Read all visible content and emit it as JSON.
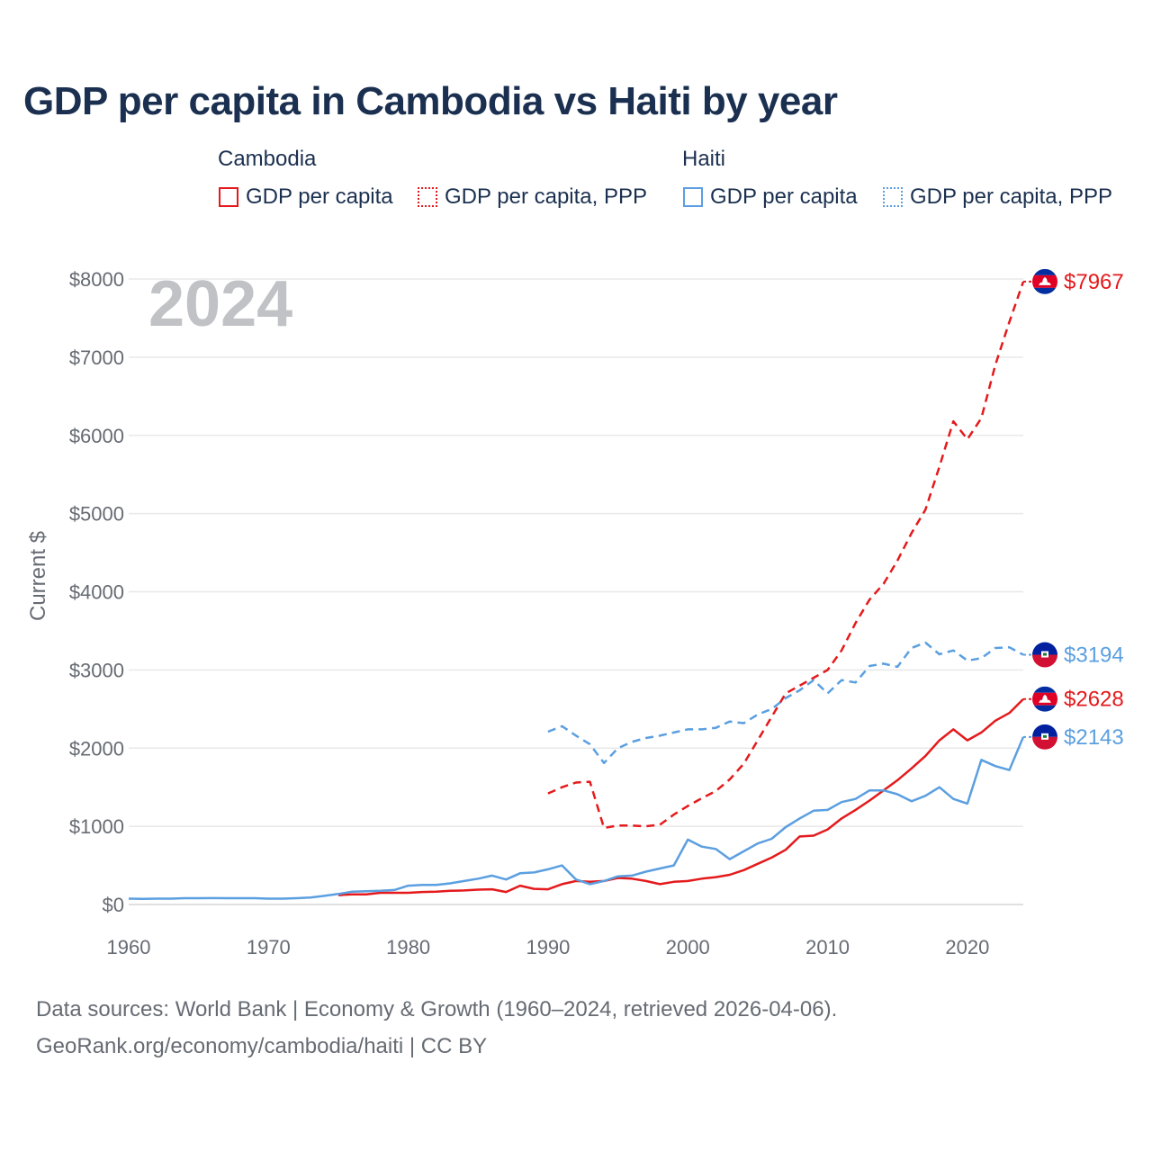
{
  "chart_data": {
    "type": "line",
    "title": "GDP per capita in Cambodia vs Haiti by year",
    "ylabel": "Current $",
    "xlabel": "",
    "year_watermark": "2024",
    "xlim": [
      1960,
      2024
    ],
    "ylim": [
      0,
      8000
    ],
    "x_ticks": [
      1960,
      1970,
      1980,
      1990,
      2000,
      2010,
      2020
    ],
    "x_tick_labels": [
      "1960",
      "1970",
      "1980",
      "1990",
      "2000",
      "2010",
      "2020"
    ],
    "y_ticks": [
      0,
      1000,
      2000,
      3000,
      4000,
      5000,
      6000,
      7000,
      8000
    ],
    "y_tick_labels": [
      "$0",
      "$1000",
      "$2000",
      "$3000",
      "$4000",
      "$5000",
      "$6000",
      "$7000",
      "$8000"
    ],
    "legend": {
      "groups": [
        {
          "country": "Cambodia",
          "items": [
            {
              "label": "GDP per capita",
              "style": "solid",
              "color": "#e41a1c"
            },
            {
              "label": "GDP per capita, PPP",
              "style": "dotted",
              "color": "#e41a1c"
            }
          ]
        },
        {
          "country": "Haiti",
          "items": [
            {
              "label": "GDP per capita",
              "style": "solid",
              "color": "#5b9fe0"
            },
            {
              "label": "GDP per capita, PPP",
              "style": "dotted",
              "color": "#5b9fe0"
            }
          ]
        }
      ]
    },
    "series": [
      {
        "name": "Cambodia GDP per capita",
        "color": "#e41a1c",
        "dash": false,
        "end_label": "$2628",
        "flag": "cambodia",
        "x": [
          1975,
          1976,
          1977,
          1978,
          1979,
          1980,
          1981,
          1982,
          1983,
          1984,
          1985,
          1986,
          1987,
          1988,
          1989,
          1990,
          1991,
          1992,
          1993,
          1994,
          1995,
          1996,
          1997,
          1998,
          1999,
          2000,
          2001,
          2002,
          2003,
          2004,
          2005,
          2006,
          2007,
          2008,
          2009,
          2010,
          2011,
          2012,
          2013,
          2014,
          2015,
          2016,
          2017,
          2018,
          2019,
          2020,
          2021,
          2022,
          2023,
          2024
        ],
        "y": [
          120,
          130,
          130,
          150,
          150,
          150,
          160,
          165,
          175,
          180,
          190,
          195,
          160,
          240,
          200,
          195,
          260,
          300,
          290,
          300,
          340,
          330,
          300,
          260,
          290,
          300,
          330,
          350,
          380,
          440,
          520,
          600,
          700,
          870,
          880,
          960,
          1100,
          1210,
          1330,
          1460,
          1590,
          1740,
          1900,
          2100,
          2240,
          2100,
          2200,
          2350,
          2450,
          2628
        ]
      },
      {
        "name": "Cambodia GDP per capita, PPP",
        "color": "#e41a1c",
        "dash": true,
        "end_label": "$7967",
        "flag": "cambodia",
        "x": [
          1990,
          1991,
          1992,
          1993,
          1994,
          1995,
          1996,
          1997,
          1998,
          1999,
          2000,
          2001,
          2002,
          2003,
          2004,
          2005,
          2006,
          2007,
          2008,
          2009,
          2010,
          2011,
          2012,
          2013,
          2014,
          2015,
          2016,
          2017,
          2018,
          2019,
          2020,
          2021,
          2022,
          2023,
          2024
        ],
        "y": [
          1420,
          1500,
          1560,
          1570,
          980,
          1010,
          1010,
          1000,
          1020,
          1150,
          1260,
          1360,
          1450,
          1600,
          1800,
          2100,
          2400,
          2700,
          2800,
          2900,
          3000,
          3250,
          3600,
          3900,
          4100,
          4400,
          4750,
          5050,
          5600,
          6180,
          5950,
          6220,
          6900,
          7450,
          7967
        ]
      },
      {
        "name": "Haiti GDP per capita",
        "color": "#5b9fe0",
        "dash": false,
        "end_label": "$2143",
        "flag": "haiti",
        "x": [
          1960,
          1961,
          1962,
          1963,
          1964,
          1965,
          1966,
          1967,
          1968,
          1969,
          1970,
          1971,
          1972,
          1973,
          1974,
          1975,
          1976,
          1977,
          1978,
          1979,
          1980,
          1981,
          1982,
          1983,
          1984,
          1985,
          1986,
          1987,
          1988,
          1989,
          1990,
          1991,
          1992,
          1993,
          1994,
          1995,
          1996,
          1997,
          1998,
          1999,
          2000,
          2001,
          2002,
          2003,
          2004,
          2005,
          2006,
          2007,
          2008,
          2009,
          2010,
          2011,
          2012,
          2013,
          2014,
          2015,
          2016,
          2017,
          2018,
          2019,
          2020,
          2021,
          2022,
          2023,
          2024
        ],
        "y": [
          75,
          73,
          75,
          75,
          80,
          80,
          82,
          80,
          80,
          80,
          75,
          75,
          80,
          90,
          110,
          135,
          165,
          170,
          175,
          185,
          240,
          250,
          250,
          270,
          300,
          330,
          370,
          320,
          400,
          410,
          450,
          500,
          320,
          260,
          300,
          360,
          370,
          420,
          460,
          500,
          830,
          740,
          710,
          580,
          680,
          780,
          840,
          990,
          1100,
          1200,
          1210,
          1310,
          1350,
          1460,
          1460,
          1410,
          1320,
          1390,
          1500,
          1350,
          1290,
          1850,
          1770,
          1720,
          2143
        ]
      },
      {
        "name": "Haiti GDP per capita, PPP",
        "color": "#5b9fe0",
        "dash": true,
        "end_label": "$3194",
        "flag": "haiti",
        "x": [
          1990,
          1991,
          1992,
          1993,
          1994,
          1995,
          1996,
          1997,
          1998,
          1999,
          2000,
          2001,
          2002,
          2003,
          2004,
          2005,
          2006,
          2007,
          2008,
          2009,
          2010,
          2011,
          2012,
          2013,
          2014,
          2015,
          2016,
          2017,
          2018,
          2019,
          2020,
          2021,
          2022,
          2023,
          2024
        ],
        "y": [
          2210,
          2280,
          2160,
          2050,
          1810,
          2000,
          2080,
          2130,
          2160,
          2200,
          2240,
          2240,
          2260,
          2340,
          2320,
          2430,
          2500,
          2640,
          2740,
          2870,
          2700,
          2870,
          2840,
          3050,
          3080,
          3040,
          3280,
          3350,
          3200,
          3250,
          3120,
          3150,
          3280,
          3290,
          3194
        ]
      }
    ]
  },
  "footer": {
    "line1": "Data sources: World Bank | Economy & Growth (1960–2024, retrieved 2026-04-06).",
    "line2": "GeoRank.org/economy/cambodia/haiti | CC BY"
  }
}
